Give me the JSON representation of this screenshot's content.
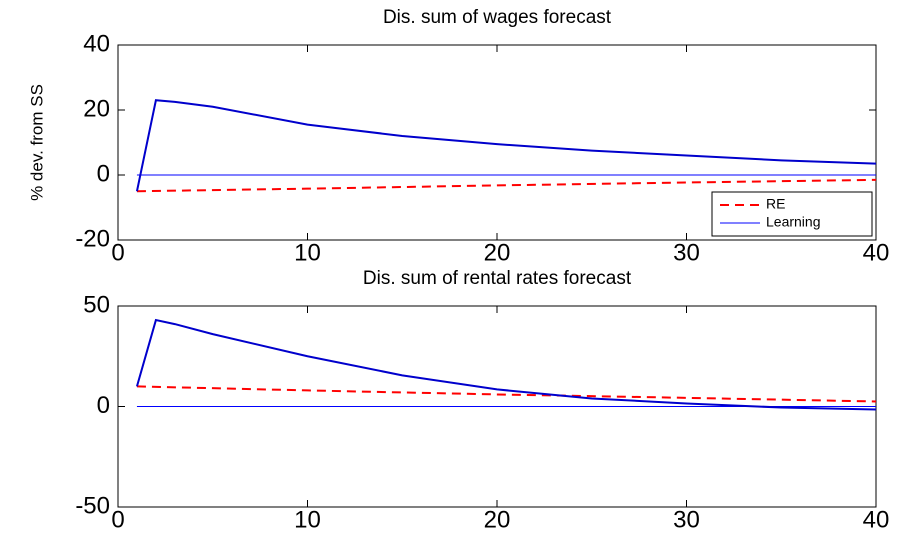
{
  "chart_data": [
    {
      "type": "line",
      "title": "Dis. sum of wages forecast",
      "y_label": "% dev. from SS",
      "xlim": [
        0,
        40
      ],
      "xticks": [
        0,
        10,
        20,
        30,
        40
      ],
      "ylim": [
        -20,
        40
      ],
      "yticks": [
        -20,
        0,
        20,
        40
      ],
      "legend": "lower right",
      "series": [
        {
          "name": "RE",
          "color": "#ff0000",
          "dash": true,
          "width": 2,
          "x": [
            1,
            10,
            20,
            30,
            40
          ],
          "values": [
            -5,
            -4.2,
            -3.2,
            -2.3,
            -1.5
          ]
        },
        {
          "name": "Learning",
          "color": "#0000ff",
          "dash": false,
          "width": 1,
          "x": [
            1,
            40
          ],
          "values": [
            0,
            0
          ]
        },
        {
          "color": "#0000cc",
          "dash": false,
          "width": 2,
          "x": [
            1,
            2,
            3,
            5,
            10,
            15,
            20,
            25,
            30,
            35,
            40
          ],
          "values": [
            -5,
            23,
            22.5,
            21,
            15.5,
            12,
            9.5,
            7.5,
            6,
            4.5,
            3.5
          ]
        }
      ]
    },
    {
      "type": "line",
      "title": "Dis. sum of rental rates forecast",
      "xlim": [
        0,
        40
      ],
      "xticks": [
        0,
        10,
        20,
        30,
        40
      ],
      "ylim": [
        -50,
        50
      ],
      "yticks": [
        -50,
        0,
        50
      ],
      "series": [
        {
          "color": "#ff0000",
          "dash": true,
          "width": 2,
          "x": [
            1,
            10,
            20,
            30,
            40
          ],
          "values": [
            10,
            8,
            6,
            4.3,
            2.5
          ]
        },
        {
          "color": "#0000ff",
          "dash": false,
          "width": 1,
          "x": [
            1,
            40
          ],
          "values": [
            0,
            0
          ]
        },
        {
          "color": "#0000cc",
          "dash": false,
          "width": 2,
          "x": [
            1,
            2,
            3,
            5,
            10,
            15,
            20,
            25,
            30,
            35,
            40
          ],
          "values": [
            10,
            43,
            41,
            36,
            25,
            15.5,
            8.5,
            4,
            1.5,
            -0.5,
            -1.5
          ]
        }
      ]
    }
  ]
}
